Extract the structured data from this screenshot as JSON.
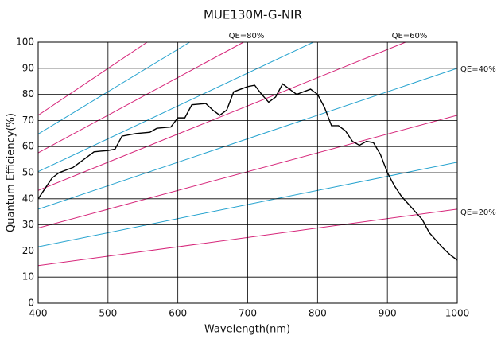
{
  "chart_data": {
    "type": "line",
    "title": "MUE130M-G-NIR",
    "xlabel": "Wavelength(nm)",
    "ylabel": "Quantum Efficiency(%)",
    "xlim": [
      400,
      1000
    ],
    "xticks": [
      400,
      500,
      600,
      700,
      800,
      900,
      1000
    ],
    "ylim": [
      0,
      100
    ],
    "yticks": [
      0,
      10,
      20,
      30,
      40,
      50,
      60,
      70,
      80,
      90,
      100
    ],
    "grid": true,
    "annotations": [
      "QE=80%",
      "QE=60%",
      "QE=40%",
      "QE=20%"
    ],
    "series": [
      {
        "color": "#d6267a",
        "x": [
          400,
          1000
        ],
        "values": [
          14.4,
          36
        ]
      },
      {
        "color": "#26a3cf",
        "x": [
          400,
          1000
        ],
        "values": [
          21.6,
          54
        ]
      },
      {
        "color": "#d6267a",
        "x": [
          400,
          1000
        ],
        "values": [
          28.8,
          72
        ]
      },
      {
        "color": "#26a3cf",
        "x": [
          400,
          1000
        ],
        "values": [
          36,
          90
        ]
      },
      {
        "color": "#d6267a",
        "x": [
          400,
          926
        ],
        "values": [
          43.2,
          100
        ]
      },
      {
        "color": "#26a3cf",
        "x": [
          400,
          794
        ],
        "values": [
          50.4,
          100
        ]
      },
      {
        "color": "#d6267a",
        "x": [
          400,
          694
        ],
        "values": [
          57.6,
          100
        ]
      },
      {
        "color": "#26a3cf",
        "x": [
          400,
          617
        ],
        "values": [
          64.8,
          100
        ]
      },
      {
        "color": "#d6267a",
        "x": [
          400,
          556
        ],
        "values": [
          72,
          100
        ]
      },
      {
        "color": "#000000",
        "x": [
          400,
          410,
          420,
          430,
          450,
          470,
          480,
          500,
          510,
          520,
          540,
          560,
          570,
          590,
          600,
          610,
          620,
          640,
          650,
          660,
          670,
          680,
          690,
          700,
          710,
          720,
          730,
          740,
          750,
          760,
          770,
          780,
          790,
          800,
          810,
          820,
          830,
          840,
          850,
          860,
          870,
          880,
          890,
          900,
          910,
          920,
          930,
          940,
          950,
          960,
          970,
          980,
          990,
          1000
        ],
        "values": [
          40,
          44,
          48,
          50,
          52,
          56,
          58,
          58.5,
          59,
          64,
          65,
          65.5,
          67,
          67.5,
          71,
          71,
          76,
          76.5,
          74,
          72,
          74,
          81,
          82,
          83,
          83.5,
          80,
          77,
          79,
          84,
          82,
          80,
          81,
          82,
          80,
          75,
          68,
          68,
          66,
          62,
          60.5,
          62,
          61.5,
          57,
          50,
          45,
          41,
          38,
          35,
          32,
          27,
          24,
          21,
          18.5,
          16.5
        ]
      }
    ]
  }
}
